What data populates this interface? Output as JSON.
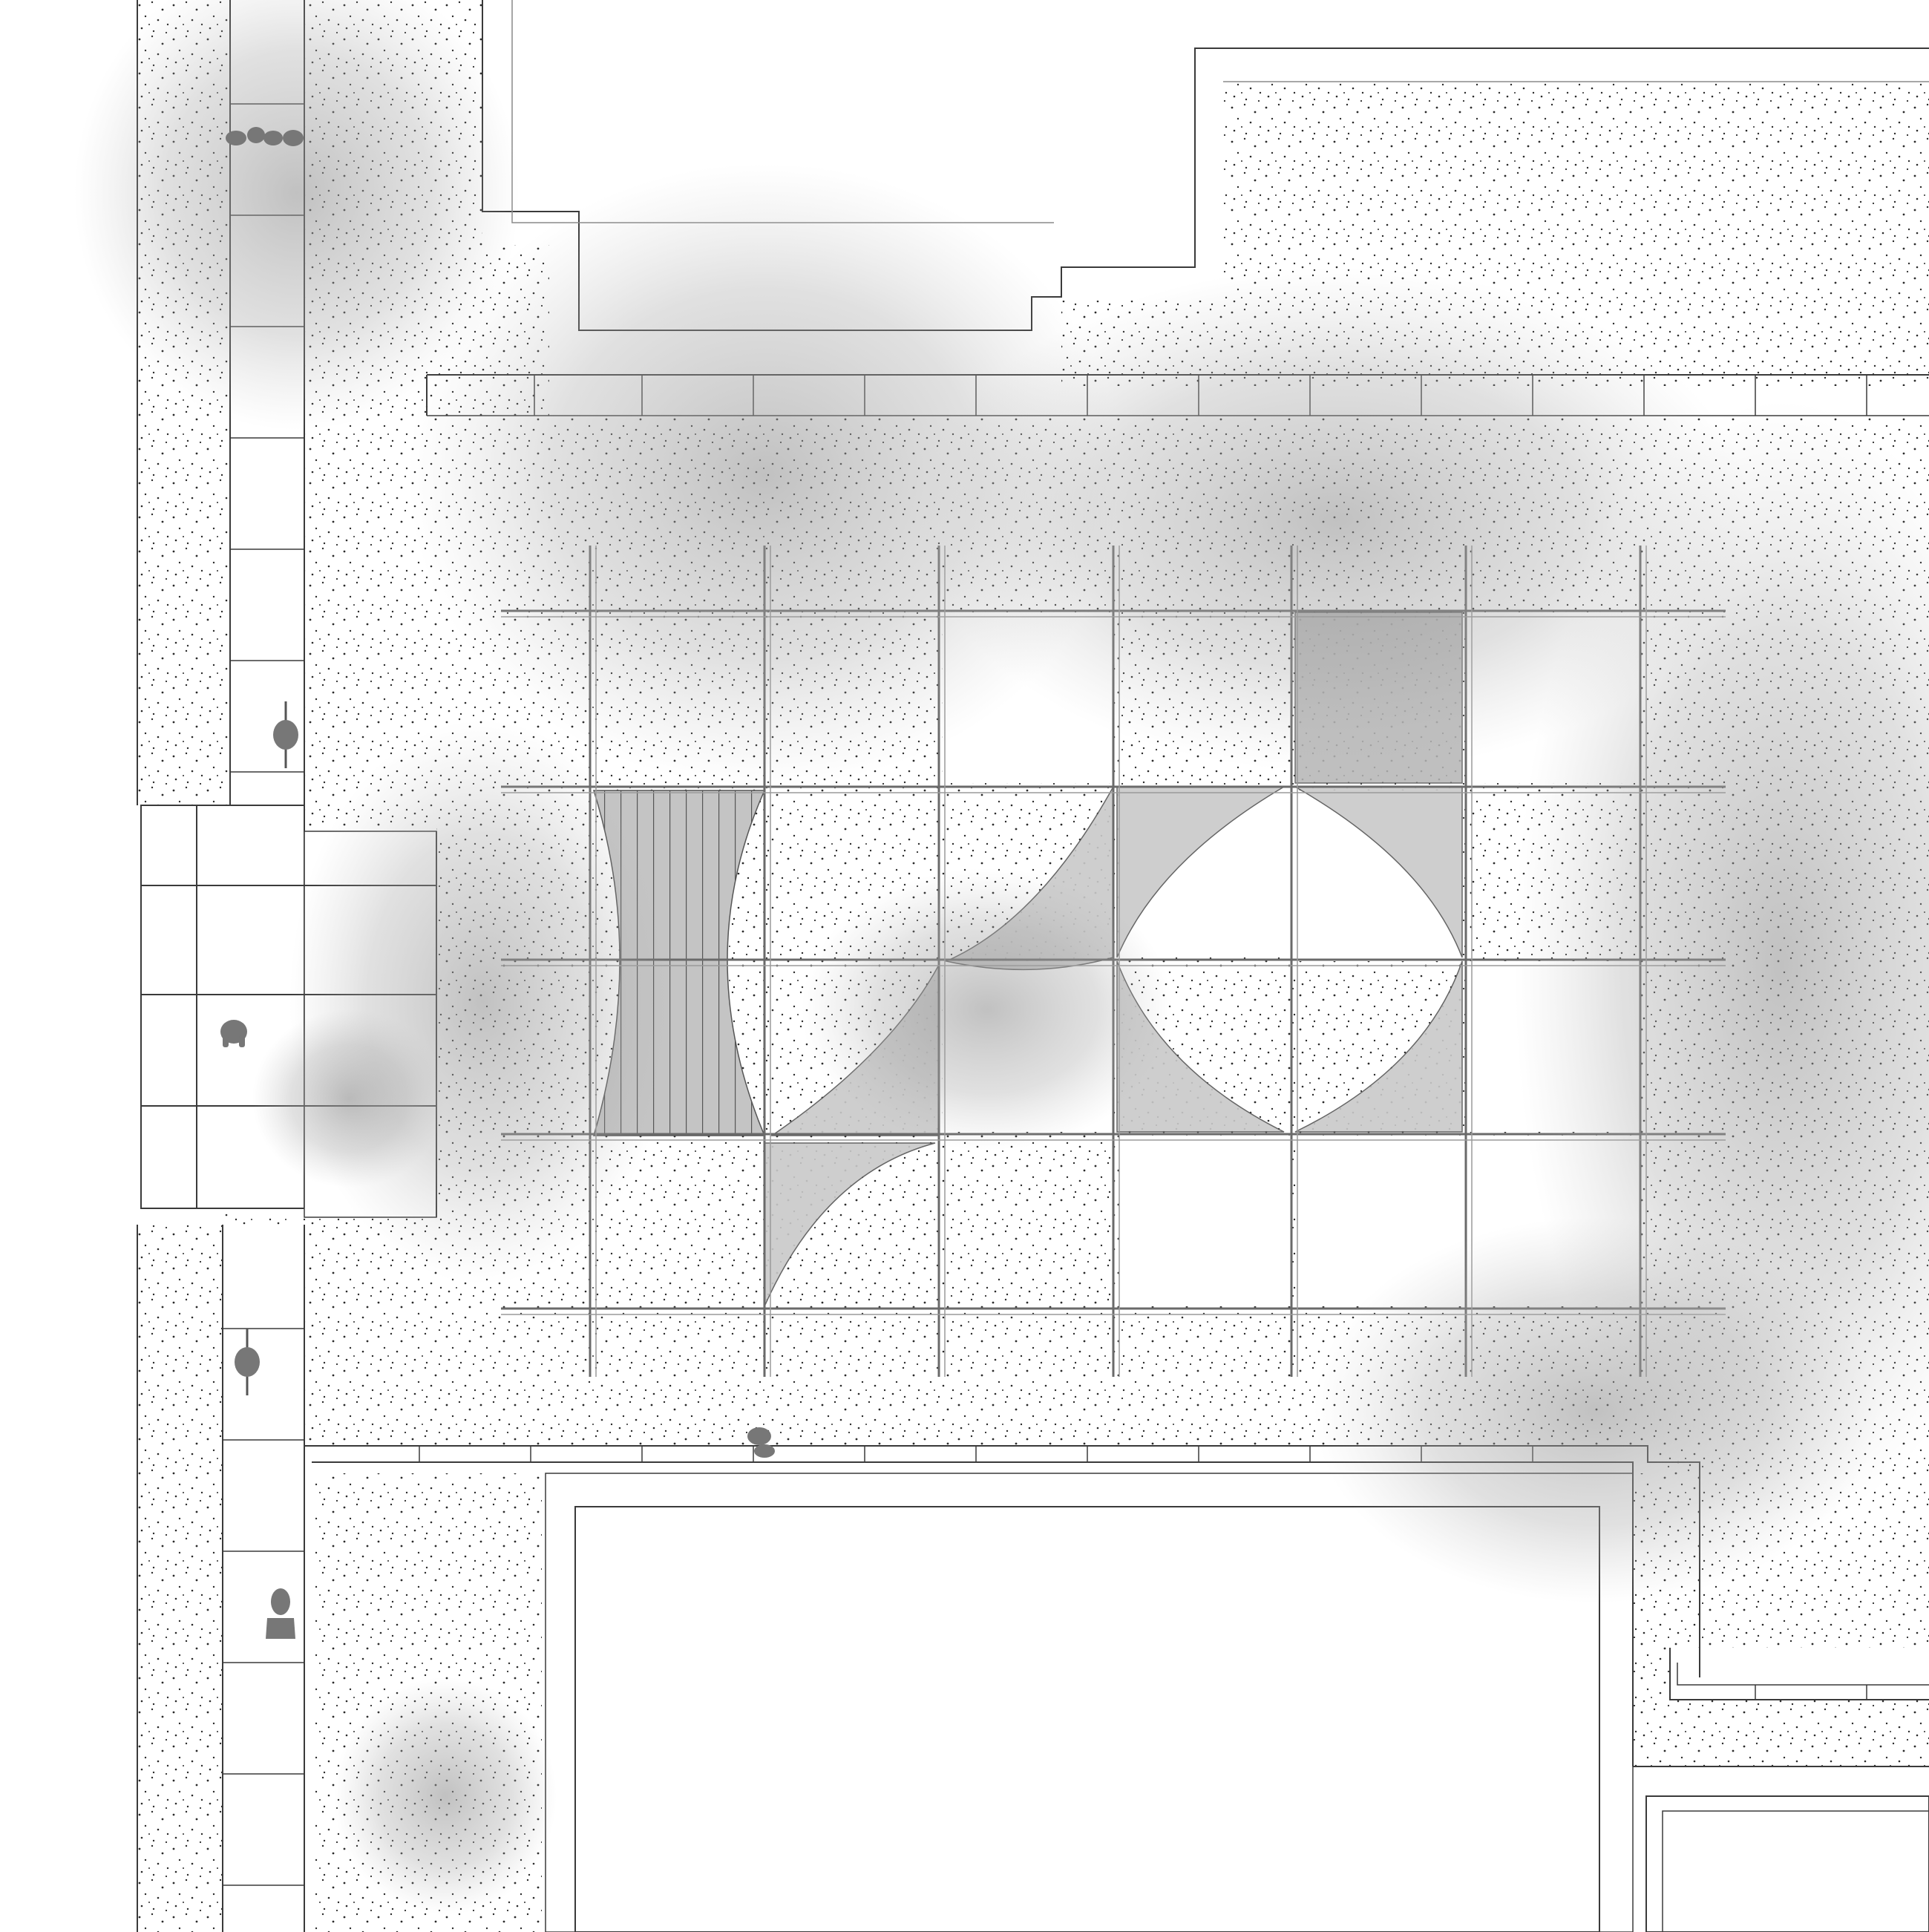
{
  "drawing": {
    "type": "architectural site plan",
    "text_labels": [],
    "colors": {
      "background": "#ffffff",
      "line": "#3a3a3a",
      "thin_line": "#8a8a8a",
      "stipple": "#2b2b2b",
      "canopy": "#9b9b9b",
      "shade_fabric": "#c9c9c9",
      "slat_shade": "#b9b9b9",
      "figure": "#777777"
    },
    "elements": [
      "bike-path",
      "paved-plaza",
      "pergola-grid",
      "shade-sails",
      "tree-canopies",
      "building-footprints",
      "curb-pavers",
      "people-figures",
      "cyclists"
    ]
  }
}
